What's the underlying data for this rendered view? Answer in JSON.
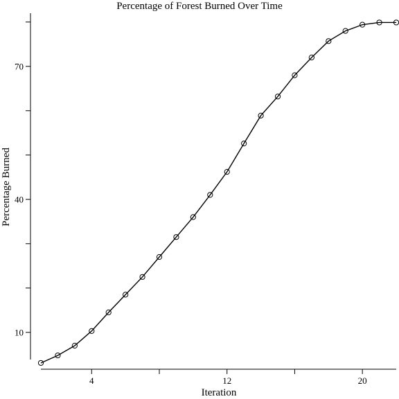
{
  "chart_data": {
    "type": "line",
    "title": "Percentage of Forest Burned Over Time",
    "xlabel": "Iteration",
    "ylabel": "Percentage Burned",
    "xlim": [
      1,
      22
    ],
    "ylim": [
      2,
      82
    ],
    "x_ticks": [
      4,
      8,
      12,
      16,
      20
    ],
    "x_tick_labels": [
      "4",
      "",
      "12",
      "",
      "20"
    ],
    "y_ticks": [
      10,
      20,
      30,
      40,
      50,
      60,
      70,
      80
    ],
    "y_tick_labels": [
      "10",
      "",
      "",
      "40",
      "",
      "",
      "70",
      ""
    ],
    "grid": false,
    "legend": "none",
    "marker": "circle-open",
    "series": [
      {
        "x": [
          1,
          2,
          3,
          4,
          5,
          6,
          7,
          8,
          9,
          10,
          11,
          12,
          13,
          14,
          15,
          16,
          17,
          18,
          19,
          20,
          21,
          22
        ],
        "values": [
          3.1,
          4.8,
          7.0,
          10.3,
          14.5,
          18.5,
          22.5,
          27.0,
          31.5,
          36.0,
          41.0,
          46.2,
          52.6,
          58.9,
          63.2,
          68.0,
          72.0,
          75.7,
          78.0,
          79.4,
          79.9,
          79.9
        ]
      }
    ]
  }
}
